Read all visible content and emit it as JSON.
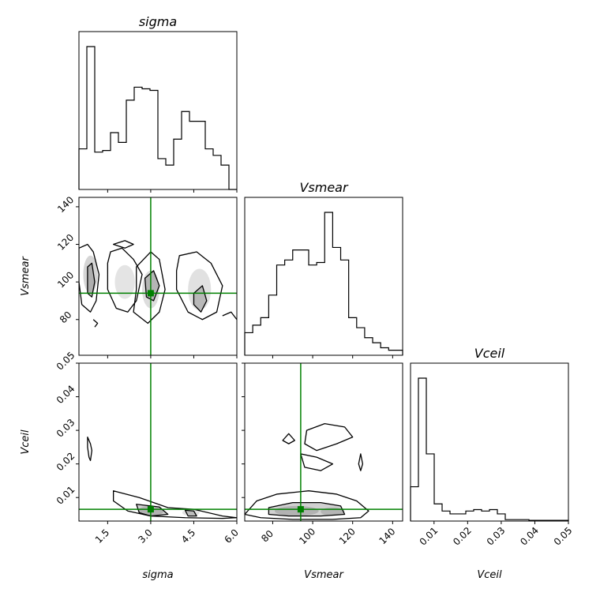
{
  "chart_data": {
    "type": "corner",
    "parameters": [
      "sigma",
      "Vsmear",
      "Vceil"
    ],
    "truth": {
      "sigma": 3.0,
      "Vsmear": 94,
      "Vceil": 0.0065
    },
    "colors": {
      "truth": "#008000",
      "hist": "#000000",
      "contour": "#000000",
      "density": "#808080"
    },
    "panels": [
      {
        "id": "sigma-hist",
        "type": "histogram",
        "row": 0,
        "col": 0,
        "title": "sigma",
        "xlim": [
          0.5,
          6.0
        ],
        "x_ticks": [
          1.5,
          3.0,
          4.5,
          6.0
        ],
        "x_tick_labels": [
          "1.5",
          "3.0",
          "4.5",
          "6.0"
        ],
        "show_x_tick_labels": false,
        "bin_edges": [
          0.5,
          0.775,
          1.05,
          1.325,
          1.6,
          1.875,
          2.15,
          2.425,
          2.7,
          2.975,
          3.25,
          3.525,
          3.8,
          4.075,
          4.35,
          4.625,
          4.9,
          5.175,
          5.45,
          5.725,
          6.0
        ],
        "counts": [
          25,
          88,
          23,
          24,
          35,
          29,
          55,
          63,
          62,
          61,
          19,
          15,
          31,
          48,
          42,
          42,
          25,
          21,
          15,
          0
        ]
      },
      {
        "id": "vsmear-vs-sigma",
        "type": "2d-density",
        "row": 1,
        "col": 0,
        "xlim": [
          0.5,
          6.0
        ],
        "ylim": [
          61,
          145
        ],
        "x_ticks": [
          1.5,
          3.0,
          4.5,
          6.0
        ],
        "show_x_tick_labels": false,
        "y_ticks": [
          80,
          100,
          120,
          140
        ],
        "y_tick_labels": [
          "80",
          "100",
          "120",
          "140"
        ],
        "ylabel": "Vsmear",
        "truth_x": 3.0,
        "truth_y": 94,
        "contours": [
          {
            "level": "outer",
            "points": [
              [
                0.5,
                118
              ],
              [
                0.8,
                120
              ],
              [
                1.0,
                116
              ],
              [
                1.2,
                104
              ],
              [
                1.1,
                90
              ],
              [
                0.9,
                84
              ],
              [
                0.6,
                88
              ],
              [
                0.5,
                100
              ]
            ]
          },
          {
            "level": "inner",
            "points": [
              [
                0.8,
                108
              ],
              [
                0.95,
                110
              ],
              [
                1.05,
                100
              ],
              [
                0.95,
                92
              ],
              [
                0.8,
                94
              ]
            ]
          },
          {
            "level": "outer",
            "points": [
              [
                1.6,
                116
              ],
              [
                2.0,
                118
              ],
              [
                2.4,
                112
              ],
              [
                2.7,
                104
              ],
              [
                2.5,
                90
              ],
              [
                2.2,
                84
              ],
              [
                1.8,
                86
              ],
              [
                1.5,
                96
              ],
              [
                1.5,
                110
              ]
            ]
          },
          {
            "level": "outer",
            "points": [
              [
                2.5,
                108
              ],
              [
                3.0,
                116
              ],
              [
                3.3,
                112
              ],
              [
                3.5,
                96
              ],
              [
                3.3,
                84
              ],
              [
                2.9,
                78
              ],
              [
                2.4,
                84
              ],
              [
                2.5,
                96
              ]
            ]
          },
          {
            "level": "inner",
            "points": [
              [
                2.8,
                102
              ],
              [
                3.1,
                106
              ],
              [
                3.3,
                98
              ],
              [
                3.1,
                90
              ],
              [
                2.85,
                92
              ]
            ]
          },
          {
            "level": "outer",
            "points": [
              [
                4.0,
                114
              ],
              [
                4.6,
                116
              ],
              [
                5.1,
                110
              ],
              [
                5.5,
                98
              ],
              [
                5.3,
                84
              ],
              [
                4.8,
                80
              ],
              [
                4.3,
                84
              ],
              [
                3.9,
                96
              ],
              [
                3.9,
                106
              ]
            ]
          },
          {
            "level": "inner",
            "points": [
              [
                4.5,
                94
              ],
              [
                4.8,
                98
              ],
              [
                4.95,
                90
              ],
              [
                4.75,
                84
              ],
              [
                4.5,
                88
              ]
            ]
          },
          {
            "level": "outer",
            "points": [
              [
                5.5,
                82
              ],
              [
                5.8,
                84
              ],
              [
                6.0,
                80
              ]
            ]
          },
          {
            "level": "outer",
            "points": [
              [
                1.7,
                120
              ],
              [
                2.1,
                122
              ],
              [
                2.4,
                120
              ],
              [
                2.1,
                118
              ]
            ]
          },
          {
            "level": "outer",
            "points": [
              [
                1.0,
                80
              ],
              [
                1.15,
                78
              ],
              [
                1.05,
                76
              ]
            ]
          }
        ],
        "density_blobs": [
          {
            "x": 0.9,
            "y": 104,
            "w": 0.5,
            "h": 20,
            "shade": 0.55
          },
          {
            "x": 2.1,
            "y": 100,
            "w": 0.7,
            "h": 18,
            "shade": 0.35
          },
          {
            "x": 3.0,
            "y": 96,
            "w": 0.6,
            "h": 20,
            "shade": 0.45
          },
          {
            "x": 4.7,
            "y": 96,
            "w": 0.8,
            "h": 22,
            "shade": 0.4
          }
        ]
      },
      {
        "id": "vsmear-hist",
        "type": "histogram",
        "row": 1,
        "col": 1,
        "title": "Vsmear",
        "xlim": [
          66,
          145
        ],
        "x_ticks": [
          80,
          100,
          120,
          140
        ],
        "show_x_tick_labels": false,
        "bin_edges": [
          66,
          70,
          74,
          78,
          82,
          86,
          90,
          94,
          98,
          102,
          106,
          110,
          114,
          118,
          122,
          126,
          130,
          134,
          138,
          142,
          145
        ],
        "counts": [
          9,
          12,
          15,
          24,
          36,
          38,
          42,
          42,
          36,
          37,
          57,
          43,
          38,
          15,
          11,
          7,
          5,
          3,
          2,
          2
        ]
      },
      {
        "id": "vceil-vs-sigma",
        "type": "2d-density",
        "row": 2,
        "col": 0,
        "xlim": [
          0.5,
          6.0
        ],
        "ylim": [
          0.003,
          0.05
        ],
        "x_ticks": [
          1.5,
          3.0,
          4.5,
          6.0
        ],
        "x_tick_labels": [
          "1.5",
          "3.0",
          "4.5",
          "6.0"
        ],
        "y_ticks": [
          0.01,
          0.02,
          0.03,
          0.04,
          0.05
        ],
        "y_tick_labels": [
          "0.01",
          "0.02",
          "0.03",
          "0.04",
          "0.05"
        ],
        "xlabel": "sigma",
        "ylabel": "Vceil",
        "truth_x": 3.0,
        "truth_y": 0.0065,
        "contours": [
          {
            "level": "outer",
            "points": [
              [
                0.8,
                0.028
              ],
              [
                0.9,
                0.026
              ],
              [
                0.95,
                0.024
              ],
              [
                0.9,
                0.021
              ],
              [
                0.85,
                0.022
              ],
              [
                0.8,
                0.025
              ]
            ]
          },
          {
            "level": "outer",
            "points": [
              [
                1.7,
                0.012
              ],
              [
                2.6,
                0.01
              ],
              [
                3.6,
                0.007
              ],
              [
                4.5,
                0.0065
              ],
              [
                5.5,
                0.0045
              ],
              [
                6.0,
                0.004
              ],
              [
                5.5,
                0.0038
              ],
              [
                4.2,
                0.004
              ],
              [
                3.0,
                0.0045
              ],
              [
                2.2,
                0.006
              ],
              [
                1.7,
                0.009
              ]
            ]
          },
          {
            "level": "inner",
            "points": [
              [
                2.5,
                0.008
              ],
              [
                3.3,
                0.0072
              ],
              [
                3.6,
                0.005
              ],
              [
                3.0,
                0.0045
              ],
              [
                2.6,
                0.0055
              ]
            ]
          },
          {
            "level": "inner",
            "points": [
              [
                4.2,
                0.0062
              ],
              [
                4.5,
                0.006
              ],
              [
                4.6,
                0.0045
              ],
              [
                4.3,
                0.0045
              ]
            ]
          }
        ],
        "density_blobs": [
          {
            "x": 3.0,
            "y": 0.006,
            "w": 0.9,
            "h": 0.003,
            "shade": 0.5
          },
          {
            "x": 4.4,
            "y": 0.0055,
            "w": 0.6,
            "h": 0.002,
            "shade": 0.35
          }
        ]
      },
      {
        "id": "vceil-vs-vsmear",
        "type": "2d-density",
        "row": 2,
        "col": 1,
        "xlim": [
          66,
          145
        ],
        "ylim": [
          0.003,
          0.05
        ],
        "x_ticks": [
          80,
          100,
          120,
          140
        ],
        "x_tick_labels": [
          "80",
          "100",
          "120",
          "140"
        ],
        "y_ticks": [
          0.01,
          0.02,
          0.03,
          0.04,
          0.05
        ],
        "show_y_tick_labels": false,
        "xlabel": "Vsmear",
        "truth_x": 94,
        "truth_y": 0.0065,
        "contours": [
          {
            "level": "outer",
            "points": [
              [
                66,
                0.005
              ],
              [
                72,
                0.009
              ],
              [
                82,
                0.011
              ],
              [
                98,
                0.012
              ],
              [
                112,
                0.011
              ],
              [
                122,
                0.009
              ],
              [
                128,
                0.006
              ],
              [
                124,
                0.004
              ],
              [
                110,
                0.0035
              ],
              [
                90,
                0.0035
              ],
              [
                74,
                0.004
              ]
            ]
          },
          {
            "level": "inner",
            "points": [
              [
                78,
                0.007
              ],
              [
                90,
                0.0085
              ],
              [
                104,
                0.0085
              ],
              [
                114,
                0.0075
              ],
              [
                116,
                0.005
              ],
              [
                104,
                0.0045
              ],
              [
                88,
                0.0045
              ],
              [
                78,
                0.005
              ]
            ]
          },
          {
            "level": "outer",
            "points": [
              [
                97,
                0.03
              ],
              [
                106,
                0.032
              ],
              [
                116,
                0.031
              ],
              [
                120,
                0.028
              ],
              [
                112,
                0.026
              ],
              [
                102,
                0.024
              ],
              [
                96,
                0.026
              ]
            ]
          },
          {
            "level": "outer",
            "points": [
              [
                94,
                0.023
              ],
              [
                102,
                0.022
              ],
              [
                110,
                0.02
              ],
              [
                104,
                0.018
              ],
              [
                96,
                0.019
              ]
            ]
          },
          {
            "level": "outer",
            "points": [
              [
                88,
                0.029
              ],
              [
                91,
                0.027
              ],
              [
                88,
                0.026
              ],
              [
                85,
                0.027
              ]
            ]
          },
          {
            "level": "outer",
            "points": [
              [
                124,
                0.023
              ],
              [
                125,
                0.02
              ],
              [
                124,
                0.018
              ],
              [
                123,
                0.02
              ]
            ]
          }
        ],
        "density_blobs": [
          {
            "x": 92,
            "y": 0.006,
            "w": 22,
            "h": 0.003,
            "shade": 0.5
          },
          {
            "x": 110,
            "y": 0.0058,
            "w": 12,
            "h": 0.0025,
            "shade": 0.45
          }
        ]
      },
      {
        "id": "vceil-hist",
        "type": "histogram",
        "row": 2,
        "col": 2,
        "title": "Vceil",
        "xlim": [
          0.003,
          0.05
        ],
        "x_ticks": [
          0.01,
          0.02,
          0.03,
          0.04,
          0.05
        ],
        "x_tick_labels": [
          "0.01",
          "0.02",
          "0.03",
          "0.04",
          "0.05"
        ],
        "xlabel": "Vceil",
        "bin_edges": [
          0.003,
          0.00535,
          0.0077,
          0.01005,
          0.0124,
          0.01475,
          0.0171,
          0.01945,
          0.0218,
          0.02415,
          0.0265,
          0.02885,
          0.0312,
          0.03355,
          0.0359,
          0.03825,
          0.0406,
          0.04295,
          0.0453,
          0.04765,
          0.05
        ],
        "counts": [
          24,
          100,
          47,
          12,
          7,
          5,
          5,
          7,
          8,
          7,
          8,
          5,
          1,
          1,
          1,
          0.5,
          0.5,
          0.5,
          0.5,
          0.5
        ]
      }
    ]
  }
}
